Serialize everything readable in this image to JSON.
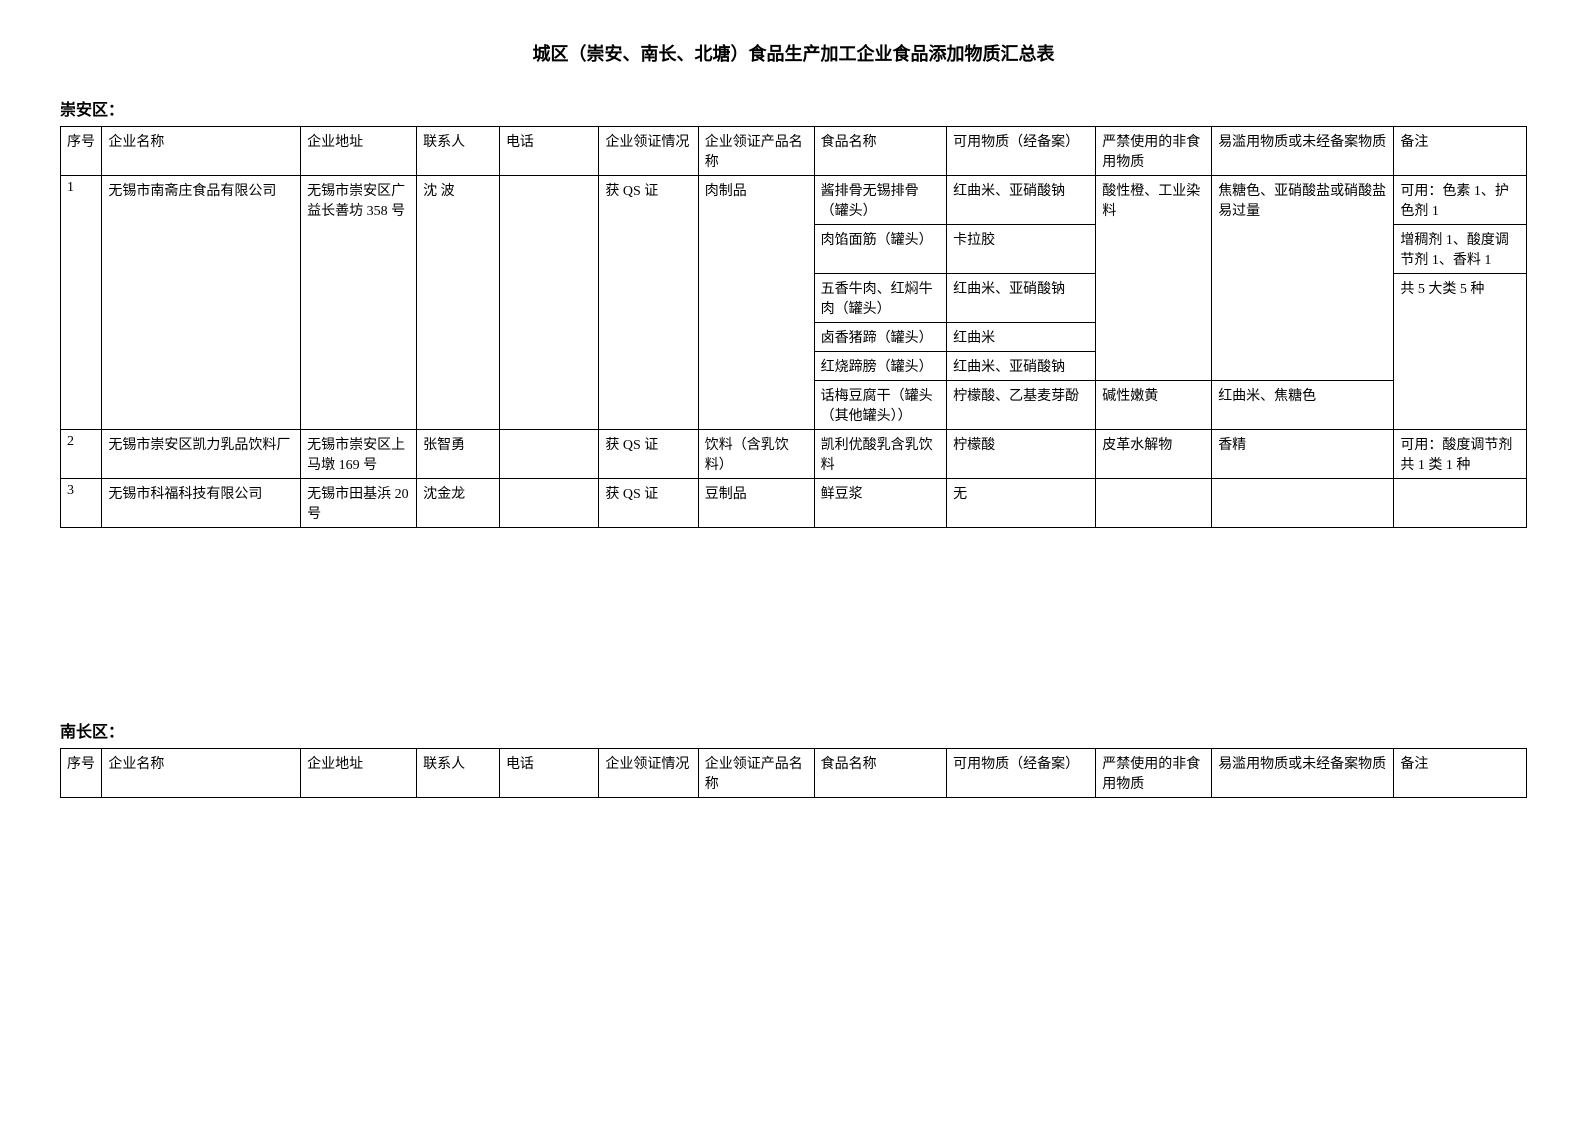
{
  "title": "城区（崇安、南长、北塘）食品生产加工企业食品添加物质汇总表",
  "section1": {
    "heading": "崇安区：",
    "headers": {
      "seq": "序号",
      "name": "企业名称",
      "addr": "企业地址",
      "contact": "联系人",
      "phone": "电话",
      "cert": "企业领证情况",
      "prod": "企业领证产品名称",
      "food": "食品名称",
      "allow": "可用物质（经备案）",
      "forbid": "严禁使用的非食用物质",
      "abuse": "易滥用物质或未经备案物质",
      "remark": "备注"
    },
    "r1": {
      "seq": "1",
      "name": "无锡市南斋庄食品有限公司",
      "addr": "无锡市崇安区广益长善坊 358 号",
      "contact": "沈  波",
      "phone": "",
      "cert": "获 QS 证",
      "prod": "肉制品",
      "food_a": "酱排骨无锡排骨（罐头）",
      "allow_a": "红曲米、亚硝酸钠",
      "forbid_a": "酸性橙、工业染料",
      "abuse_a": "焦糖色、亚硝酸盐或硝酸盐易过量",
      "remark_a": "可用：色素 1、护色剂 1",
      "food_b": "肉馅面筋（罐头）",
      "allow_b": "卡拉胶",
      "remark_b": "增稠剂 1、酸度调节剂 1、香料 1",
      "food_c": "五香牛肉、红焖牛肉（罐头）",
      "allow_c": "红曲米、亚硝酸钠",
      "remark_c": "共 5 大类 5 种",
      "food_d": "卤香猪蹄（罐头）",
      "allow_d": "红曲米",
      "food_e": "红烧蹄膀（罐头）",
      "allow_e": "红曲米、亚硝酸钠",
      "food_f": "话梅豆腐干（罐头（其他罐头））",
      "allow_f": "柠檬酸、乙基麦芽酚",
      "forbid_f": "碱性嫩黄",
      "abuse_f": "红曲米、焦糖色"
    },
    "r2": {
      "seq": "2",
      "name": "无锡市崇安区凯力乳品饮料厂",
      "addr": "无锡市崇安区上马墩 169 号",
      "contact": "张智勇",
      "phone": "",
      "cert": "获 QS 证",
      "prod": "饮料（含乳饮料）",
      "food": "凯利优酸乳含乳饮料",
      "allow": "柠檬酸",
      "forbid": "皮革水解物",
      "abuse": "香精",
      "remark": "可用：酸度调节剂\n共 1 类 1 种"
    },
    "r3": {
      "seq": "3",
      "name": "无锡市科福科技有限公司",
      "addr": "无锡市田基浜 20 号",
      "contact": "沈金龙",
      "phone": "",
      "cert": "获 QS 证",
      "prod": "豆制品",
      "food": "鲜豆浆",
      "allow": "无",
      "forbid": "",
      "abuse": "",
      "remark": ""
    }
  },
  "section2": {
    "heading": "南长区：",
    "headers": {
      "seq": "序号",
      "name": "企业名称",
      "addr": "企业地址",
      "contact": "联系人",
      "phone": "电话",
      "cert": "企业领证情况",
      "prod": "企业领证产品名称",
      "food": "食品名称",
      "allow": "可用物质（经备案）",
      "forbid": "严禁使用的非食用物质",
      "abuse": "易滥用物质或未经备案物质",
      "remark": "备注"
    }
  }
}
